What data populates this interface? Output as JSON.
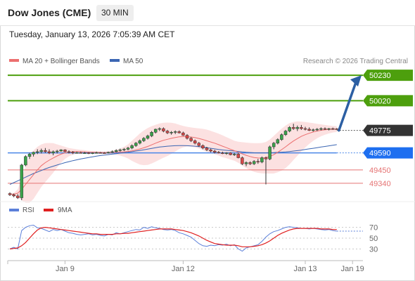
{
  "header": {
    "title": "Dow Jones (CME)",
    "timeframe": "30 MIN"
  },
  "datetime": "Tuesday, January 13, 2026 7:05:39 AM CET",
  "legend": {
    "ma20": "MA 20 + Bollinger Bands",
    "ma50": "MA 50",
    "rsi": "RSI",
    "ma9": "9MA"
  },
  "credit": "Research © 2026 Trading Central",
  "colors": {
    "up": "#3aa24a",
    "down": "#d94747",
    "ma20": "#ec6f6f",
    "ma50": "#3b66b3",
    "band": "#fbdcdc",
    "resistance": "#4d9f0d",
    "pivot": "#4a86e8",
    "support": "#e57373",
    "last": "#333333",
    "arrow": "#2c5fa3"
  },
  "chart_data": [
    {
      "type": "candlestick",
      "ylim": [
        49200,
        50300
      ],
      "x_ticks": [
        "Jan 9",
        "Jan 12",
        "Jan 13",
        "Jan 19"
      ],
      "ohlc": [
        [
          49255,
          49265,
          49235,
          49245
        ],
        [
          49245,
          49255,
          49225,
          49235
        ],
        [
          49235,
          49250,
          49210,
          49220
        ],
        [
          49220,
          49500,
          49200,
          49490
        ],
        [
          49490,
          49570,
          49480,
          49560
        ],
        [
          49560,
          49590,
          49540,
          49580
        ],
        [
          49580,
          49600,
          49560,
          49595
        ],
        [
          49595,
          49620,
          49580,
          49600
        ],
        [
          49600,
          49625,
          49585,
          49610
        ],
        [
          49610,
          49630,
          49590,
          49600
        ],
        [
          49600,
          49620,
          49580,
          49590
        ],
        [
          49590,
          49610,
          49570,
          49600
        ],
        [
          49600,
          49615,
          49585,
          49605
        ],
        [
          49605,
          49620,
          49600,
          49615
        ],
        [
          49615,
          49620,
          49595,
          49600
        ],
        [
          49600,
          49610,
          49585,
          49595
        ],
        [
          49595,
          49605,
          49580,
          49590
        ],
        [
          49590,
          49600,
          49585,
          49592
        ],
        [
          49592,
          49600,
          49585,
          49590
        ],
        [
          49590,
          49598,
          49582,
          49590
        ],
        [
          49590,
          49596,
          49580,
          49588
        ],
        [
          49588,
          49594,
          49580,
          49590
        ],
        [
          49590,
          49600,
          49585,
          49592
        ],
        [
          49592,
          49598,
          49585,
          49590
        ],
        [
          49590,
          49596,
          49584,
          49589
        ],
        [
          49589,
          49600,
          49585,
          49595
        ],
        [
          49595,
          49610,
          49590,
          49600
        ],
        [
          49600,
          49620,
          49595,
          49610
        ],
        [
          49610,
          49625,
          49600,
          49615
        ],
        [
          49615,
          49630,
          49605,
          49620
        ],
        [
          49620,
          49640,
          49610,
          49630
        ],
        [
          49630,
          49660,
          49620,
          49650
        ],
        [
          49650,
          49680,
          49640,
          49670
        ],
        [
          49670,
          49700,
          49660,
          49690
        ],
        [
          49690,
          49720,
          49680,
          49710
        ],
        [
          49710,
          49740,
          49700,
          49730
        ],
        [
          49730,
          49770,
          49720,
          49760
        ],
        [
          49760,
          49790,
          49750,
          49785
        ],
        [
          49785,
          49800,
          49770,
          49790
        ],
        [
          49790,
          49800,
          49760,
          49770
        ],
        [
          49770,
          49780,
          49745,
          49755
        ],
        [
          49755,
          49770,
          49740,
          49760
        ],
        [
          49760,
          49775,
          49745,
          49765
        ],
        [
          49765,
          49775,
          49750,
          49755
        ],
        [
          49755,
          49765,
          49730,
          49735
        ],
        [
          49735,
          49745,
          49700,
          49710
        ],
        [
          49710,
          49720,
          49680,
          49690
        ],
        [
          49690,
          49700,
          49660,
          49670
        ],
        [
          49670,
          49680,
          49640,
          49650
        ],
        [
          49650,
          49660,
          49620,
          49630
        ],
        [
          49630,
          49640,
          49605,
          49615
        ],
        [
          49615,
          49625,
          49595,
          49605
        ],
        [
          49605,
          49615,
          49585,
          49595
        ],
        [
          49595,
          49605,
          49585,
          49590
        ],
        [
          49590,
          49600,
          49580,
          49585
        ],
        [
          49585,
          49595,
          49575,
          49590
        ],
        [
          49590,
          49595,
          49570,
          49575
        ],
        [
          49575,
          49590,
          49565,
          49580
        ],
        [
          49580,
          49590,
          49545,
          49550
        ],
        [
          49550,
          49560,
          49490,
          49500
        ],
        [
          49500,
          49520,
          49480,
          49510
        ],
        [
          49510,
          49520,
          49490,
          49500
        ],
        [
          49500,
          49530,
          49490,
          49520
        ],
        [
          49520,
          49540,
          49500,
          49515
        ],
        [
          49515,
          49560,
          49505,
          49550
        ],
        [
          49550,
          49560,
          49330,
          49540
        ],
        [
          49540,
          49650,
          49530,
          49640
        ],
        [
          49640,
          49680,
          49620,
          49670
        ],
        [
          49670,
          49710,
          49660,
          49700
        ],
        [
          49700,
          49750,
          49690,
          49740
        ],
        [
          49740,
          49780,
          49730,
          49770
        ],
        [
          49770,
          49810,
          49760,
          49800
        ],
        [
          49800,
          49830,
          49780,
          49790
        ],
        [
          49790,
          49815,
          49770,
          49800
        ],
        [
          49800,
          49820,
          49780,
          49790
        ],
        [
          49790,
          49805,
          49775,
          49785
        ],
        [
          49785,
          49800,
          49770,
          49775
        ],
        [
          49775,
          49790,
          49765,
          49780
        ],
        [
          49780,
          49795,
          49770,
          49785
        ],
        [
          49785,
          49800,
          49775,
          49790
        ],
        [
          49790,
          49800,
          49780,
          49785
        ],
        [
          49785,
          49795,
          49775,
          49790
        ],
        [
          49790,
          49798,
          49780,
          49788
        ],
        [
          49788,
          49795,
          49780,
          49786
        ]
      ],
      "ma20": [
        49250,
        49250,
        49258,
        49290,
        49330,
        49370,
        49410,
        49450,
        49485,
        49510,
        49530,
        49548,
        49565,
        49580,
        49590,
        49596,
        49600,
        49602,
        49600,
        49598,
        49596,
        49595,
        49594,
        49593,
        49592,
        49592,
        49593,
        49595,
        49597,
        49599,
        49602,
        49607,
        49614,
        49622,
        49632,
        49643,
        49656,
        49670,
        49683,
        49694,
        49702,
        49710,
        49717,
        49722,
        49724,
        49724,
        49721,
        49716,
        49709,
        49700,
        49690,
        49680,
        49670,
        49658,
        49645,
        49633,
        49620,
        49608,
        49595,
        49582,
        49570,
        49560,
        49552,
        49548,
        49547,
        49550,
        49560,
        49575,
        49595,
        49617,
        49640,
        49665,
        49688,
        49708,
        49726,
        49740,
        49752,
        49762,
        49770,
        49776,
        49780,
        49783,
        49785,
        49786
      ],
      "bb_upper": [
        49250,
        49260,
        49290,
        49380,
        49480,
        49560,
        49610,
        49640,
        49660,
        49670,
        49672,
        49670,
        49660,
        49650,
        49640,
        49630,
        49625,
        49620,
        49615,
        49612,
        49608,
        49605,
        49604,
        49602,
        49602,
        49604,
        49608,
        49616,
        49626,
        49640,
        49660,
        49690,
        49720,
        49750,
        49775,
        49795,
        49810,
        49822,
        49832,
        49838,
        49840,
        49838,
        49832,
        49822,
        49812,
        49805,
        49800,
        49796,
        49792,
        49788,
        49782,
        49772,
        49760,
        49748,
        49735,
        49720,
        49705,
        49690,
        49682,
        49678,
        49675,
        49672,
        49670,
        49670,
        49672,
        49680,
        49700,
        49730,
        49760,
        49790,
        49815,
        49835,
        49845,
        49850,
        49848,
        49845,
        49840,
        49835,
        49830,
        49825,
        49820,
        49816,
        49812,
        49810
      ],
      "bb_lower": [
        49250,
        49240,
        49226,
        49200,
        49180,
        49180,
        49210,
        49260,
        49310,
        49350,
        49388,
        49426,
        49470,
        49510,
        49540,
        49562,
        49575,
        49584,
        49585,
        49584,
        49584,
        49585,
        49584,
        49584,
        49582,
        49580,
        49578,
        49574,
        49568,
        49558,
        49544,
        49524,
        49508,
        49494,
        49489,
        49491,
        49502,
        49518,
        49534,
        49550,
        49564,
        49582,
        49602,
        49622,
        49636,
        49643,
        49642,
        49636,
        49626,
        49612,
        49598,
        49588,
        49580,
        49568,
        49555,
        49546,
        49535,
        49526,
        49508,
        49486,
        49465,
        49448,
        49434,
        49426,
        49422,
        49420,
        49420,
        49420,
        49430,
        49444,
        49465,
        49495,
        49531,
        49566,
        49604,
        49635,
        49664,
        49689,
        49710,
        49727,
        49740,
        49750,
        49758,
        49762
      ],
      "ma50": [
        49330,
        49345,
        49360,
        49375,
        49390,
        49405,
        49420,
        49432,
        49445,
        49458,
        49470,
        49480,
        49490,
        49500,
        49510,
        49518,
        49526,
        49533,
        49540,
        49546,
        49552,
        49558,
        49563,
        49568,
        49572,
        49576,
        49580,
        49584,
        49588,
        49592,
        49596,
        49600,
        49605,
        49610,
        49615,
        49621,
        49627,
        49633,
        49638,
        49642,
        49645,
        49647,
        49649,
        49650,
        49650,
        49649,
        49647,
        49645,
        49642,
        49638,
        49633,
        49628,
        49623,
        49618,
        49614,
        49611,
        49608,
        49605,
        49602,
        49598,
        49595,
        49593,
        49591,
        49590,
        49590,
        49590,
        49591,
        49592,
        49594,
        49596,
        49598,
        49601,
        49605,
        49609,
        49613,
        49618,
        49623,
        49628,
        49633,
        49638,
        49643,
        49648,
        49653,
        49658
      ],
      "levels": [
        {
          "label": "50230",
          "value": 50230,
          "kind": "resistance"
        },
        {
          "label": "50020",
          "value": 50020,
          "kind": "resistance"
        },
        {
          "label": "49775",
          "value": 49775,
          "kind": "last"
        },
        {
          "label": "49590",
          "value": 49590,
          "kind": "pivot"
        },
        {
          "label": "49450",
          "value": 49450,
          "kind": "support"
        },
        {
          "label": "49340",
          "value": 49340,
          "kind": "support"
        }
      ],
      "forecast": {
        "from": 49775,
        "to": 50230
      }
    },
    {
      "type": "line",
      "ylim": [
        15,
        85
      ],
      "y_ticks": [
        70,
        50,
        30
      ],
      "series": [
        {
          "name": "RSI",
          "values": [
            30,
            33,
            30,
            64,
            70,
            73,
            74,
            69,
            68,
            65,
            62,
            66,
            64,
            66,
            63,
            60,
            59,
            57,
            56,
            57,
            58,
            56,
            57,
            55,
            54,
            57,
            56,
            60,
            58,
            60,
            62,
            64,
            66,
            65,
            70,
            68,
            71,
            69,
            68,
            66,
            65,
            66,
            64,
            60,
            58,
            55,
            52,
            46,
            40,
            36,
            35,
            37,
            36,
            38,
            37,
            39,
            36,
            38,
            30,
            26,
            32,
            34,
            36,
            38,
            44,
            52,
            58,
            62,
            64,
            67,
            70,
            71,
            70,
            69,
            68,
            68,
            67,
            68,
            67,
            66,
            65,
            66,
            64,
            63
          ]
        },
        {
          "name": "9MA",
          "values": [
            30,
            31,
            32,
            36,
            42,
            50,
            58,
            65,
            69,
            70,
            69,
            68,
            67,
            66,
            65,
            64,
            63,
            62,
            61,
            60,
            59,
            58,
            58,
            57,
            57,
            57,
            57,
            58,
            58,
            59,
            59,
            60,
            61,
            62,
            63,
            64,
            65,
            66,
            67,
            67,
            67,
            67,
            66,
            65,
            64,
            62,
            60,
            57,
            54,
            50,
            46,
            43,
            40,
            39,
            38,
            37,
            37,
            37,
            36,
            34,
            34,
            34,
            35,
            36,
            38,
            41,
            45,
            50,
            55,
            59,
            62,
            65,
            67,
            68,
            68,
            68,
            68,
            68,
            68,
            67,
            67,
            67,
            66,
            66
          ]
        }
      ]
    }
  ]
}
